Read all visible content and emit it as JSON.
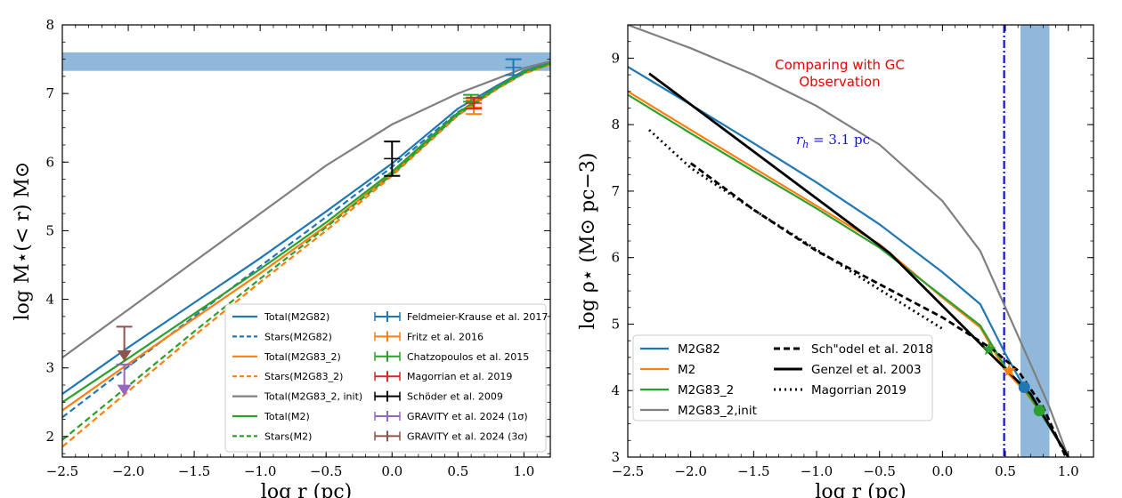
{
  "chart_data": [
    {
      "type": "line",
      "xlabel": "log r (pc)",
      "ylabel": "log M⋆(< r) M⊙",
      "xlim": [
        -2.5,
        1.2
      ],
      "ylim": [
        1.7,
        8.0
      ],
      "xticks": [
        "−2.5",
        "−2.0",
        "−1.5",
        "−1.0",
        "−0.5",
        "0.0",
        "0.5",
        "1.0"
      ],
      "yticks": [
        "2",
        "3",
        "4",
        "5",
        "6",
        "7",
        "8"
      ],
      "band": {
        "y": [
          7.33,
          7.6
        ],
        "color": "#8fb8db"
      },
      "series": [
        {
          "name": "Total(M2G82)",
          "color": "#1f77b4",
          "dash": "solid",
          "x": [
            -2.5,
            -2.0,
            -1.5,
            -1.0,
            -0.5,
            0.0,
            0.5,
            0.8,
            1.0,
            1.2
          ],
          "y": [
            2.62,
            3.3,
            3.95,
            4.6,
            5.28,
            5.98,
            6.78,
            7.12,
            7.33,
            7.45
          ]
        },
        {
          "name": "Stars(M2G82)",
          "color": "#1f77b4",
          "dash": "dashed",
          "x": [
            -2.5,
            -2.0,
            -1.5,
            -1.0,
            -0.5,
            0.0,
            0.5,
            0.8,
            1.0,
            1.2
          ],
          "y": [
            2.28,
            3.02,
            3.75,
            4.48,
            5.2,
            5.93,
            6.73,
            7.08,
            7.3,
            7.43
          ]
        },
        {
          "name": "Total(M2G83_2)",
          "color": "#ff7f0e",
          "dash": "solid",
          "x": [
            -2.5,
            -2.0,
            -1.5,
            -1.0,
            -0.5,
            0.0,
            0.5,
            0.8,
            1.0,
            1.2
          ],
          "y": [
            2.38,
            3.06,
            3.72,
            4.38,
            5.07,
            5.83,
            6.7,
            7.08,
            7.3,
            7.43
          ]
        },
        {
          "name": "Stars(M2G83_2)",
          "color": "#ff7f0e",
          "dash": "dashed",
          "x": [
            -2.5,
            -2.0,
            -1.5,
            -1.0,
            -0.5,
            0.0,
            0.5,
            0.8,
            1.0,
            1.2
          ],
          "y": [
            1.85,
            2.66,
            3.47,
            4.25,
            5.0,
            5.8,
            6.68,
            7.07,
            7.29,
            7.42
          ]
        },
        {
          "name": "Total(M2G83_2, init)",
          "color": "#7f7f7f",
          "dash": "solid",
          "x": [
            -2.5,
            -2.0,
            -1.5,
            -1.0,
            -0.5,
            0.0,
            0.5,
            0.8,
            1.0,
            1.2
          ],
          "y": [
            3.15,
            3.85,
            4.55,
            5.25,
            5.95,
            6.55,
            7.0,
            7.22,
            7.37,
            7.47
          ]
        },
        {
          "name": "Total(M2)",
          "color": "#2ca02c",
          "dash": "solid",
          "x": [
            -2.5,
            -2.0,
            -1.5,
            -1.0,
            -0.5,
            0.0,
            0.5,
            0.8,
            1.0,
            1.2
          ],
          "y": [
            2.5,
            3.14,
            3.79,
            4.44,
            5.12,
            5.86,
            6.72,
            7.1,
            7.32,
            7.44
          ]
        },
        {
          "name": "Stars(M2)",
          "color": "#2ca02c",
          "dash": "dashed",
          "x": [
            -2.5,
            -2.0,
            -1.5,
            -1.0,
            -0.5,
            0.0,
            0.5,
            0.8,
            1.0,
            1.2
          ],
          "y": [
            1.95,
            2.74,
            3.53,
            4.3,
            5.05,
            5.82,
            6.69,
            7.08,
            7.3,
            7.43
          ]
        }
      ],
      "errorbars": [
        {
          "name": "Feldmeier-Krause et al. 2017",
          "color": "#1f77b4",
          "x": 0.92,
          "y": 7.38,
          "lo": 7.27,
          "hi": 7.5
        },
        {
          "name": "Fritz et al. 2016",
          "color": "#ff7f0e",
          "x": 0.62,
          "y": 6.8,
          "lo": 6.7,
          "hi": 6.9
        },
        {
          "name": "Chatzopoulos et al. 2015",
          "color": "#2ca02c",
          "x": 0.6,
          "y": 6.93,
          "lo": 6.88,
          "hi": 6.98
        },
        {
          "name": "Magorrian et al. 2019",
          "color": "#d62728",
          "x": 0.62,
          "y": 6.86,
          "lo": 6.78,
          "hi": 6.94
        },
        {
          "name": "Schöder et al. 2009",
          "color": "#000000",
          "x": 0.0,
          "y": 6.05,
          "lo": 5.8,
          "hi": 6.3
        },
        {
          "name": "GRAVITY et al. 2024 (1σ)",
          "color": "#9467bd",
          "x": -2.03,
          "y": 3.05,
          "lo": 2.6,
          "hi": 3.05,
          "arrow": true
        },
        {
          "name": "GRAVITY et al. 2024 (3σ)",
          "color": "#8c564b",
          "x": -2.03,
          "y": 3.6,
          "lo": 3.1,
          "hi": 3.6,
          "arrow": true
        }
      ]
    },
    {
      "type": "line",
      "xlabel": "log r (pc)",
      "ylabel": "log ρ⋆ (M⊙ pc−3)",
      "xlim": [
        -2.5,
        1.2
      ],
      "ylim": [
        3.0,
        9.5
      ],
      "xticks": [
        "−2.5",
        "−2.0",
        "−1.5",
        "−1.0",
        "−0.5",
        "0.0",
        "0.5",
        "1.0"
      ],
      "yticks": [
        "3",
        "4",
        "5",
        "6",
        "7",
        "8",
        "9"
      ],
      "band": {
        "x": [
          0.62,
          0.85
        ],
        "color": "#8fb8db"
      },
      "vline": {
        "x": 0.49,
        "color": "#1010dd"
      },
      "annotations": {
        "title_line1": "Comparing with GC",
        "title_line2": "Observation",
        "rh_math": "r",
        "rh_sub": "h",
        "rh_rest": " = 3.1 pc"
      },
      "series": [
        {
          "name": "M2G82",
          "color": "#1f77b4",
          "dash": "solid",
          "x": [
            -2.5,
            -2.0,
            -1.5,
            -1.0,
            -0.5,
            0.0,
            0.3,
            0.5,
            0.65,
            0.8,
            1.0
          ],
          "y": [
            8.87,
            8.3,
            7.72,
            7.13,
            6.5,
            5.78,
            5.3,
            4.55,
            4.05,
            3.6,
            3.0
          ]
        },
        {
          "name": "M2",
          "color": "#ff7f0e",
          "dash": "solid",
          "x": [
            -2.5,
            -2.0,
            -1.5,
            -1.0,
            -0.5,
            0.0,
            0.3,
            0.5,
            0.65,
            0.8,
            1.0
          ],
          "y": [
            8.5,
            7.92,
            7.35,
            6.78,
            6.2,
            5.4,
            4.95,
            4.3,
            4.0,
            3.62,
            3.0
          ]
        },
        {
          "name": "M2G83_2",
          "color": "#2ca02c",
          "dash": "solid",
          "x": [
            -2.5,
            -2.0,
            -1.5,
            -1.0,
            -0.5,
            0.0,
            0.3,
            0.5,
            0.65,
            0.77,
            1.0
          ],
          "y": [
            8.45,
            7.87,
            7.3,
            6.74,
            6.15,
            5.42,
            4.98,
            4.35,
            4.02,
            3.7,
            3.0
          ]
        },
        {
          "name": "M2G83_2,init",
          "color": "#7f7f7f",
          "dash": "solid",
          "x": [
            -2.5,
            -2.0,
            -1.5,
            -1.0,
            -0.5,
            0.0,
            0.3,
            0.5,
            0.7,
            0.85,
            1.0
          ],
          "y": [
            9.5,
            9.15,
            8.75,
            8.28,
            7.7,
            6.85,
            6.1,
            5.25,
            4.4,
            3.75,
            3.0
          ]
        },
        {
          "name": "Sch\"odel et al. 2018",
          "color": "#000000",
          "dash": "dashed",
          "x": [
            -2.0,
            -1.5,
            -1.0,
            -0.5,
            0.0,
            0.4,
            0.6,
            0.8,
            0.98
          ],
          "y": [
            7.42,
            6.72,
            6.1,
            5.6,
            5.1,
            4.62,
            4.3,
            3.75,
            3.0
          ]
        },
        {
          "name": "Genzel et al. 2003",
          "color": "#000000",
          "dash": "solid",
          "x": [
            -2.33,
            -0.42,
            0.7,
            1.0
          ],
          "y": [
            8.77,
            6.07,
            3.95,
            3.0
          ]
        },
        {
          "name": "Magorrian 2019",
          "color": "#000000",
          "dash": "dotted",
          "x": [
            -2.33,
            -2.0,
            -1.5,
            -1.0,
            -0.5,
            0.0
          ],
          "y": [
            7.92,
            7.35,
            6.72,
            6.12,
            5.52,
            4.93
          ]
        }
      ],
      "markers": [
        {
          "series": "M2G82",
          "color": "#1f77b4",
          "x": 0.65,
          "y": 4.05,
          "shape": "circle"
        },
        {
          "series": "M2G83_2",
          "color": "#2ca02c",
          "x": 0.77,
          "y": 3.7,
          "shape": "circle"
        },
        {
          "series": "M2",
          "color": "#ff7f0e",
          "x": 0.53,
          "y": 4.3,
          "shape": "star"
        },
        {
          "series": "M2G83_2",
          "color": "#2ca02c",
          "x": 0.37,
          "y": 4.62,
          "shape": "star"
        }
      ]
    }
  ]
}
